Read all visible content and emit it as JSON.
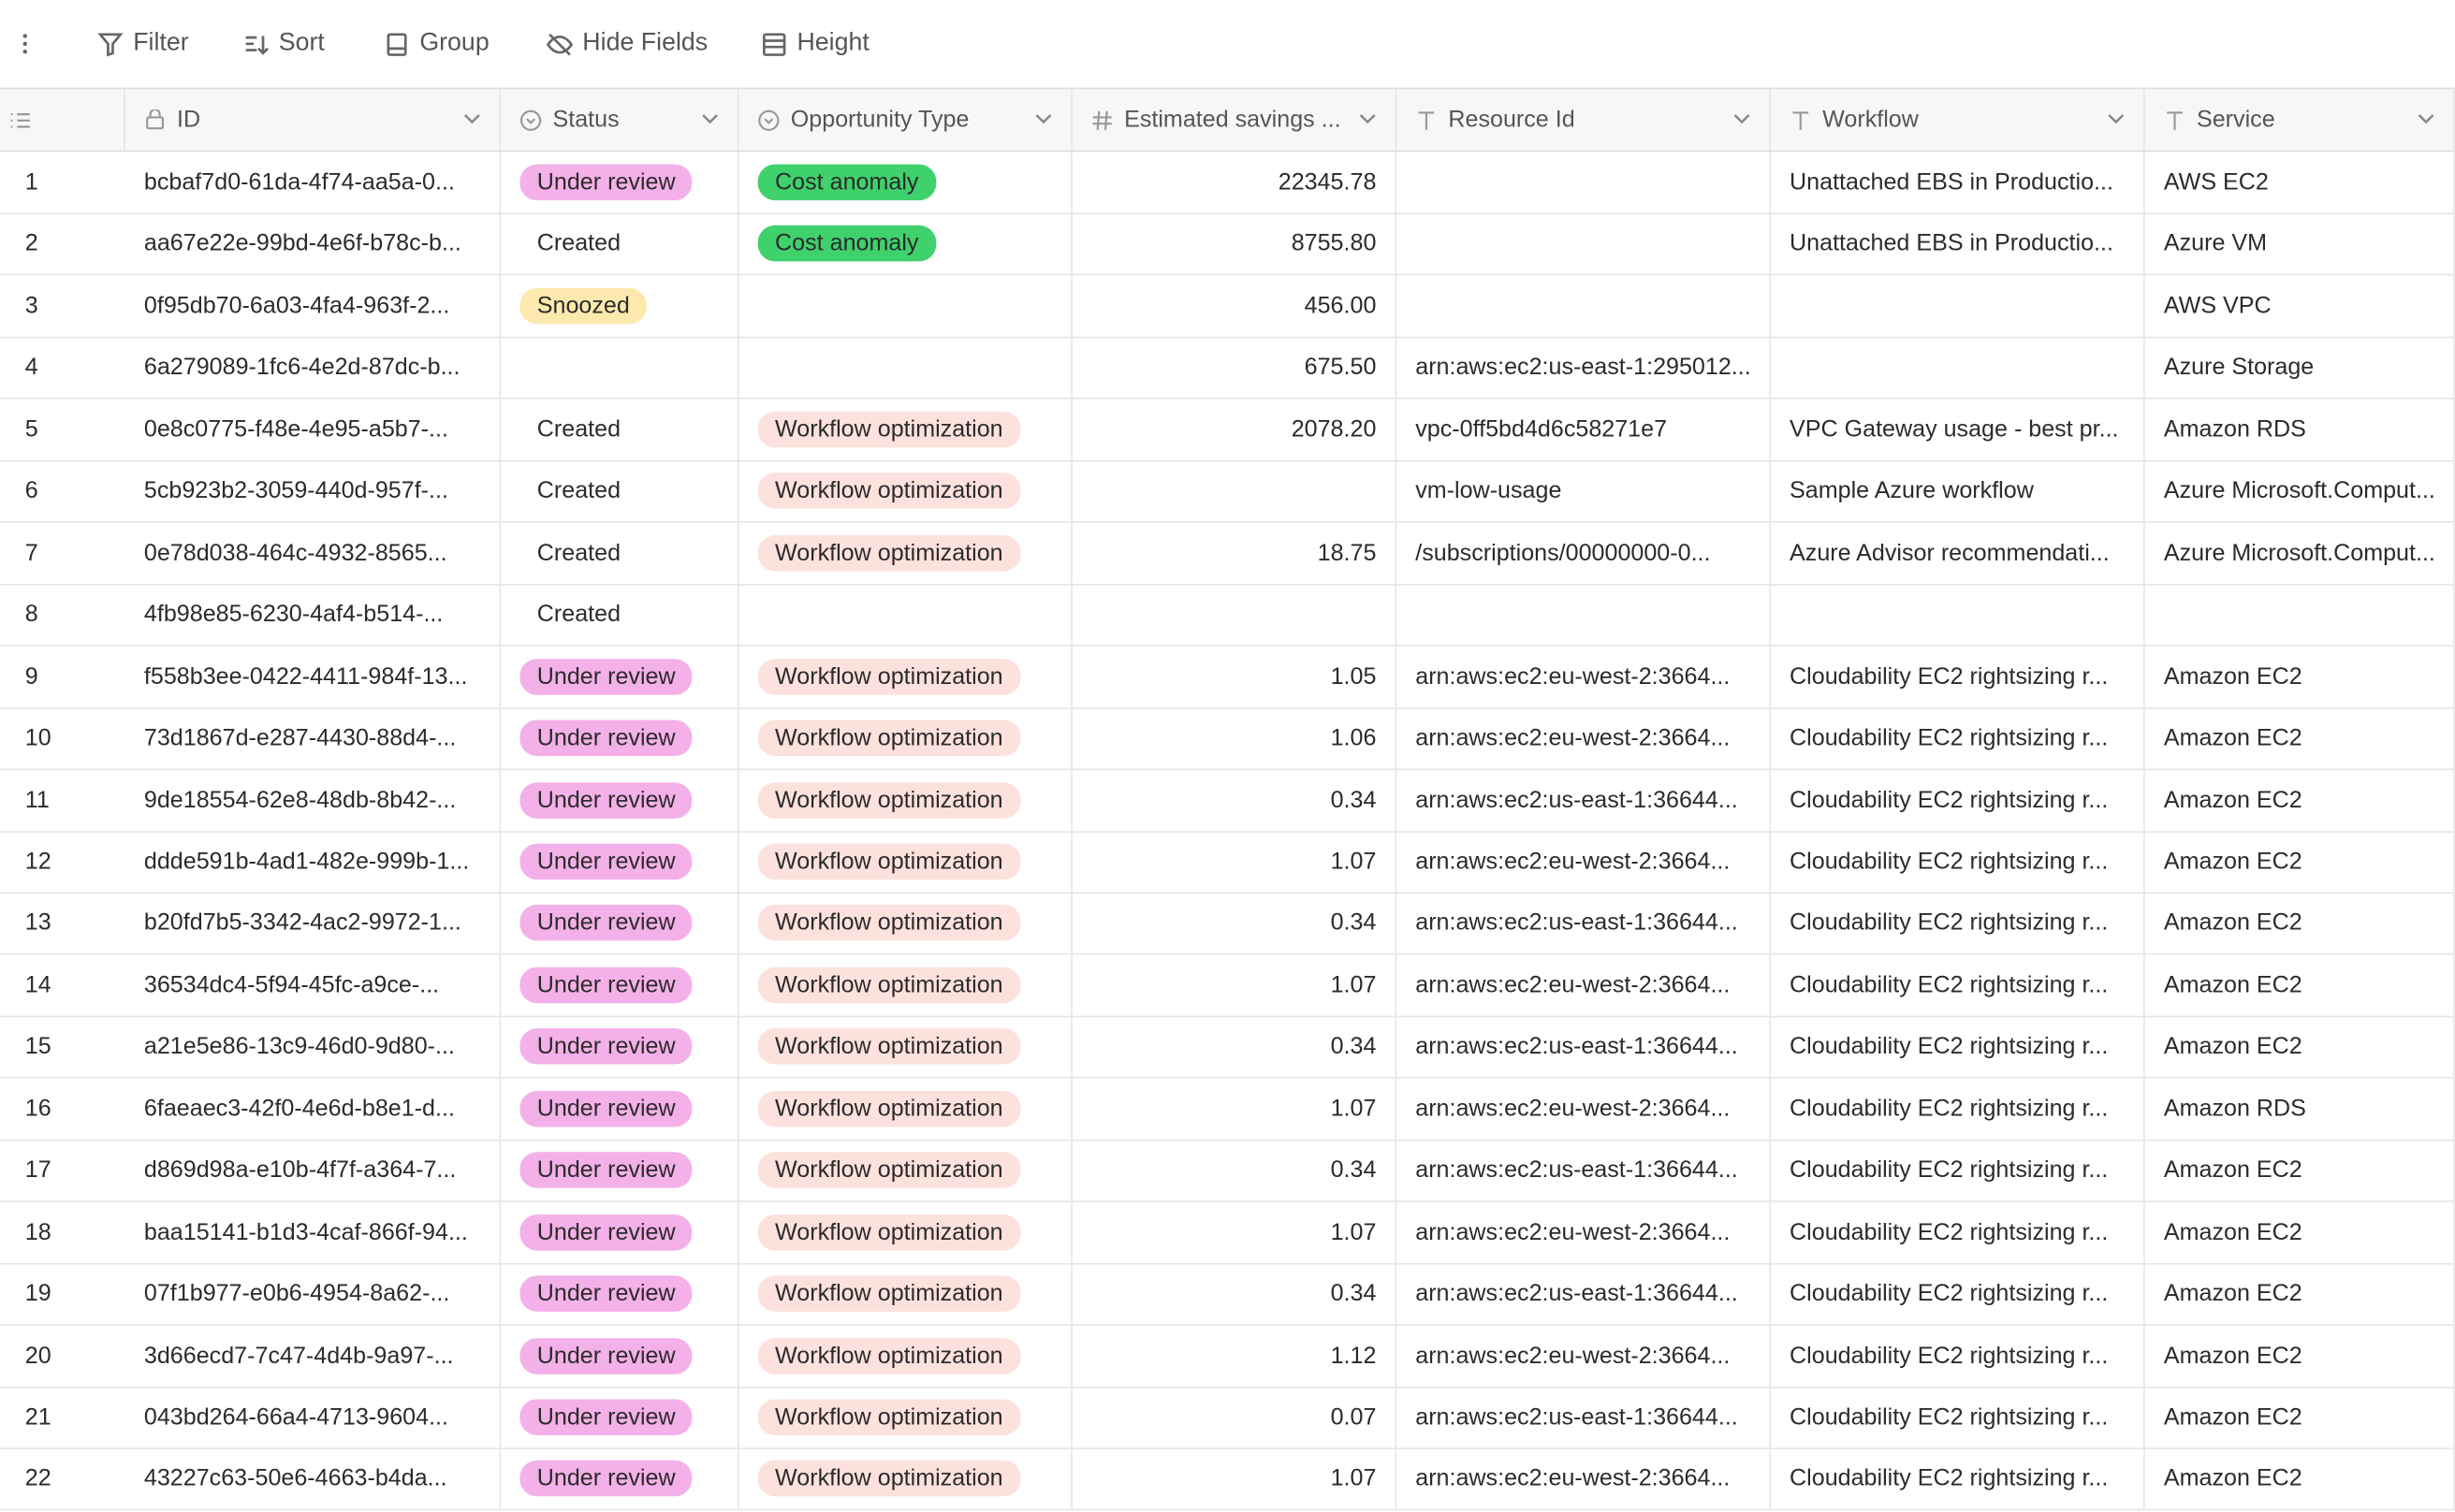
{
  "toolbar": [
    "Filter",
    "Sort",
    "Group",
    "Hide Fields",
    "Height"
  ],
  "columns": [
    "ID",
    "Status",
    "Opportunity Type",
    "Estimated savings ...",
    "Resource Id",
    "Workflow",
    "Service"
  ],
  "tag_colors": {
    "Under review": "#f4b0e8",
    "Snoozed": "#fde9ad",
    "Cost anomaly": "#3fd16c",
    "Workflow optimization": "#fde1dd"
  },
  "rows": [
    {
      "num": 1,
      "id": "bcbaf7d0-61da-4f74-aa5a-0...",
      "status": "Under review",
      "type": "Cost anomaly",
      "savings": "22345.78",
      "resource": null,
      "workflow": "Unattached EBS in Productio...",
      "service": "AWS EC2"
    },
    {
      "num": 2,
      "id": "aa67e22e-99bd-4e6f-b78c-b...",
      "status": "Created",
      "type": "Cost anomaly",
      "savings": "8755.80",
      "resource": null,
      "workflow": "Unattached EBS in Productio...",
      "service": "Azure VM"
    },
    {
      "num": 3,
      "id": "0f95db70-6a03-4fa4-963f-2...",
      "status": "Snoozed",
      "type": null,
      "savings": "456.00",
      "resource": null,
      "workflow": null,
      "service": "AWS VPC"
    },
    {
      "num": 4,
      "id": "6a279089-1fc6-4e2d-87dc-b...",
      "status": null,
      "type": null,
      "savings": "675.50",
      "resource": "arn:aws:ec2:us-east-1:295012...",
      "workflow": null,
      "service": "Azure Storage"
    },
    {
      "num": 5,
      "id": "0e8c0775-f48e-4e95-a5b7-...",
      "status": "Created",
      "type": "Workflow optimization",
      "savings": "2078.20",
      "resource": "vpc-0ff5bd4d6c58271e7",
      "workflow": "VPC Gateway usage - best pr...",
      "service": "Amazon RDS"
    },
    {
      "num": 6,
      "id": "5cb923b2-3059-440d-957f-...",
      "status": "Created",
      "type": "Workflow optimization",
      "savings": null,
      "resource": "vm-low-usage",
      "workflow": "Sample Azure workflow",
      "service": "Azure Microsoft.Comput..."
    },
    {
      "num": 7,
      "id": "0e78d038-464c-4932-8565...",
      "status": "Created",
      "type": "Workflow optimization",
      "savings": "18.75",
      "resource": "/subscriptions/00000000-0...",
      "workflow": "Azure Advisor recommendati...",
      "service": "Azure Microsoft.Comput..."
    },
    {
      "num": 8,
      "id": "4fb98e85-6230-4af4-b514-...",
      "status": "Created",
      "type": null,
      "savings": null,
      "resource": null,
      "workflow": null,
      "service": null
    },
    {
      "num": 9,
      "id": "f558b3ee-0422-4411-984f-13...",
      "status": "Under review",
      "type": "Workflow optimization",
      "savings": "1.05",
      "resource": "arn:aws:ec2:eu-west-2:3664...",
      "workflow": "Cloudability EC2 rightsizing r...",
      "service": "Amazon EC2"
    },
    {
      "num": 10,
      "id": "73d1867d-e287-4430-88d4-...",
      "status": "Under review",
      "type": "Workflow optimization",
      "savings": "1.06",
      "resource": "arn:aws:ec2:eu-west-2:3664...",
      "workflow": "Cloudability EC2 rightsizing r...",
      "service": "Amazon EC2"
    },
    {
      "num": 11,
      "id": "9de18554-62e8-48db-8b42-...",
      "status": "Under review",
      "type": "Workflow optimization",
      "savings": "0.34",
      "resource": "arn:aws:ec2:us-east-1:36644...",
      "workflow": "Cloudability EC2 rightsizing r...",
      "service": "Amazon EC2"
    },
    {
      "num": 12,
      "id": "ddde591b-4ad1-482e-999b-1...",
      "status": "Under review",
      "type": "Workflow optimization",
      "savings": "1.07",
      "resource": "arn:aws:ec2:eu-west-2:3664...",
      "workflow": "Cloudability EC2 rightsizing r...",
      "service": "Amazon EC2"
    },
    {
      "num": 13,
      "id": "b20fd7b5-3342-4ac2-9972-1...",
      "status": "Under review",
      "type": "Workflow optimization",
      "savings": "0.34",
      "resource": "arn:aws:ec2:us-east-1:36644...",
      "workflow": "Cloudability EC2 rightsizing r...",
      "service": "Amazon EC2"
    },
    {
      "num": 14,
      "id": "36534dc4-5f94-45fc-a9ce-...",
      "status": "Under review",
      "type": "Workflow optimization",
      "savings": "1.07",
      "resource": "arn:aws:ec2:eu-west-2:3664...",
      "workflow": "Cloudability EC2 rightsizing r...",
      "service": "Amazon EC2"
    },
    {
      "num": 15,
      "id": "a21e5e86-13c9-46d0-9d80-...",
      "status": "Under review",
      "type": "Workflow optimization",
      "savings": "0.34",
      "resource": "arn:aws:ec2:us-east-1:36644...",
      "workflow": "Cloudability EC2 rightsizing r...",
      "service": "Amazon EC2"
    },
    {
      "num": 16,
      "id": "6faeaec3-42f0-4e6d-b8e1-d...",
      "status": "Under review",
      "type": "Workflow optimization",
      "savings": "1.07",
      "resource": "arn:aws:ec2:eu-west-2:3664...",
      "workflow": "Cloudability EC2 rightsizing r...",
      "service": "Amazon RDS"
    },
    {
      "num": 17,
      "id": "d869d98a-e10b-4f7f-a364-7...",
      "status": "Under review",
      "type": "Workflow optimization",
      "savings": "0.34",
      "resource": "arn:aws:ec2:us-east-1:36644...",
      "workflow": "Cloudability EC2 rightsizing r...",
      "service": "Amazon EC2"
    },
    {
      "num": 18,
      "id": "baa15141-b1d3-4caf-866f-94...",
      "status": "Under review",
      "type": "Workflow optimization",
      "savings": "1.07",
      "resource": "arn:aws:ec2:eu-west-2:3664...",
      "workflow": "Cloudability EC2 rightsizing r...",
      "service": "Amazon EC2"
    },
    {
      "num": 19,
      "id": "07f1b977-e0b6-4954-8a62-...",
      "status": "Under review",
      "type": "Workflow optimization",
      "savings": "0.34",
      "resource": "arn:aws:ec2:us-east-1:36644...",
      "workflow": "Cloudability EC2 rightsizing r...",
      "service": "Amazon EC2"
    },
    {
      "num": 20,
      "id": "3d66ecd7-7c47-4d4b-9a97-...",
      "status": "Under review",
      "type": "Workflow optimization",
      "savings": "1.12",
      "resource": "arn:aws:ec2:eu-west-2:3664...",
      "workflow": "Cloudability EC2 rightsizing r...",
      "service": "Amazon EC2"
    },
    {
      "num": 21,
      "id": "043bd264-66a4-4713-9604...",
      "status": "Under review",
      "type": "Workflow optimization",
      "savings": "0.07",
      "resource": "arn:aws:ec2:us-east-1:36644...",
      "workflow": "Cloudability EC2 rightsizing r...",
      "service": "Amazon EC2"
    },
    {
      "num": 22,
      "id": "43227c63-50e6-4663-b4da...",
      "status": "Under review",
      "type": "Workflow optimization",
      "savings": "1.07",
      "resource": "arn:aws:ec2:eu-west-2:3664...",
      "workflow": "Cloudability EC2 rightsizing r...",
      "service": "Amazon EC2"
    }
  ]
}
